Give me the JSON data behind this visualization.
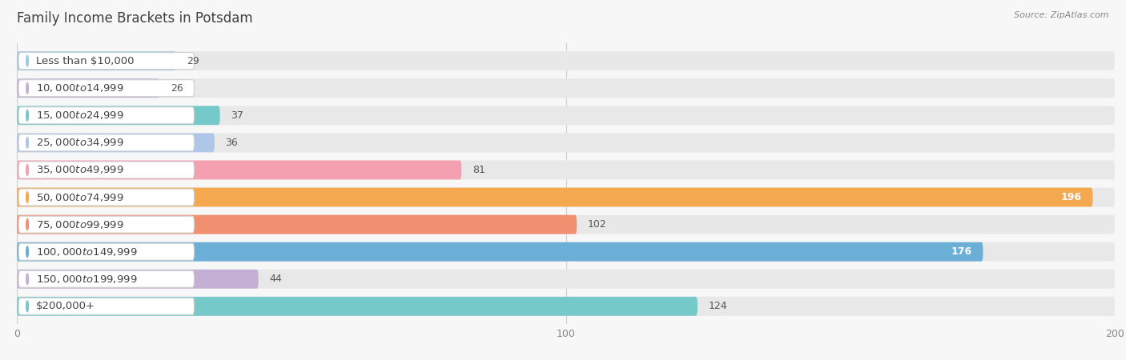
{
  "title": "Family Income Brackets in Potsdam",
  "source": "Source: ZipAtlas.com",
  "categories": [
    "Less than $10,000",
    "$10,000 to $14,999",
    "$15,000 to $24,999",
    "$25,000 to $34,999",
    "$35,000 to $49,999",
    "$50,000 to $74,999",
    "$75,000 to $99,999",
    "$100,000 to $149,999",
    "$150,000 to $199,999",
    "$200,000+"
  ],
  "values": [
    29,
    26,
    37,
    36,
    81,
    196,
    102,
    176,
    44,
    124
  ],
  "bar_colors": [
    "#9ecae1",
    "#c5b0d5",
    "#76c9c9",
    "#aec6e8",
    "#f4a0b0",
    "#f4a850",
    "#f09070",
    "#6baed6",
    "#c5b0d5",
    "#76c9c9"
  ],
  "xlim": [
    0,
    200
  ],
  "xticks": [
    0,
    100,
    200
  ],
  "background_color": "#f7f7f7",
  "bar_bg_color": "#e8e8e8",
  "title_fontsize": 12,
  "label_fontsize": 9.5,
  "value_fontsize": 9,
  "value_threshold_inside": 150,
  "value_threshold_outside_dark": 80
}
